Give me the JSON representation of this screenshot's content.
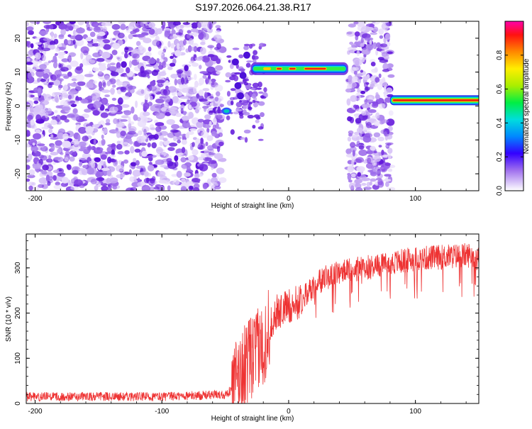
{
  "title": "S197.2026.064.21.38.R17",
  "chart_data": [
    {
      "type": "heatmap",
      "xlabel": "Height of straight line (km)",
      "ylabel": "Frequency (Hz)",
      "xlim": [
        -207,
        150
      ],
      "ylim": [
        -25,
        25
      ],
      "xticks": [
        -200,
        -100,
        0,
        100
      ],
      "yticks": [
        -20,
        -10,
        0,
        10,
        20
      ],
      "regions": [
        {
          "name": "noise-left",
          "x": [
            -207,
            -52
          ],
          "y": [
            -25,
            25
          ],
          "level": 0.2
        },
        {
          "name": "noise-middle",
          "x": [
            47,
            81
          ],
          "y": [
            -25,
            25
          ],
          "level": 0.2
        },
        {
          "name": "tone-upper",
          "x": [
            -45,
            47
          ],
          "y_center": 11,
          "level": 0.95
        },
        {
          "name": "tone-lower",
          "x": [
            80,
            150
          ],
          "y_center": 1.7,
          "level": 1.0
        }
      ],
      "colorbar": {
        "label": "Normalized spectral amplitude",
        "range": [
          0,
          1
        ],
        "ticks": [
          "0.0",
          "0.2",
          "0.4",
          "0.6",
          "0.8"
        ]
      }
    },
    {
      "type": "line",
      "xlabel": "Height of straight line (km)",
      "ylabel": "SNR (10 * v/v)",
      "xlim": [
        -207,
        150
      ],
      "ylim": [
        0,
        375
      ],
      "xticks": [
        -200,
        -100,
        0,
        100
      ],
      "yticks": [
        0,
        100,
        200,
        300
      ],
      "color": "#ee3333",
      "trend_points": [
        [
          -207,
          15
        ],
        [
          -100,
          15
        ],
        [
          -50,
          20
        ],
        [
          -45,
          30
        ],
        [
          -38,
          70
        ],
        [
          -30,
          100
        ],
        [
          -25,
          115
        ],
        [
          -20,
          130
        ],
        [
          -15,
          170
        ],
        [
          -10,
          200
        ],
        [
          0,
          215
        ],
        [
          10,
          225
        ],
        [
          15,
          245
        ],
        [
          20,
          260
        ],
        [
          30,
          280
        ],
        [
          40,
          290
        ],
        [
          50,
          295
        ],
        [
          60,
          300
        ],
        [
          80,
          310
        ],
        [
          100,
          320
        ],
        [
          150,
          330
        ]
      ]
    }
  ]
}
